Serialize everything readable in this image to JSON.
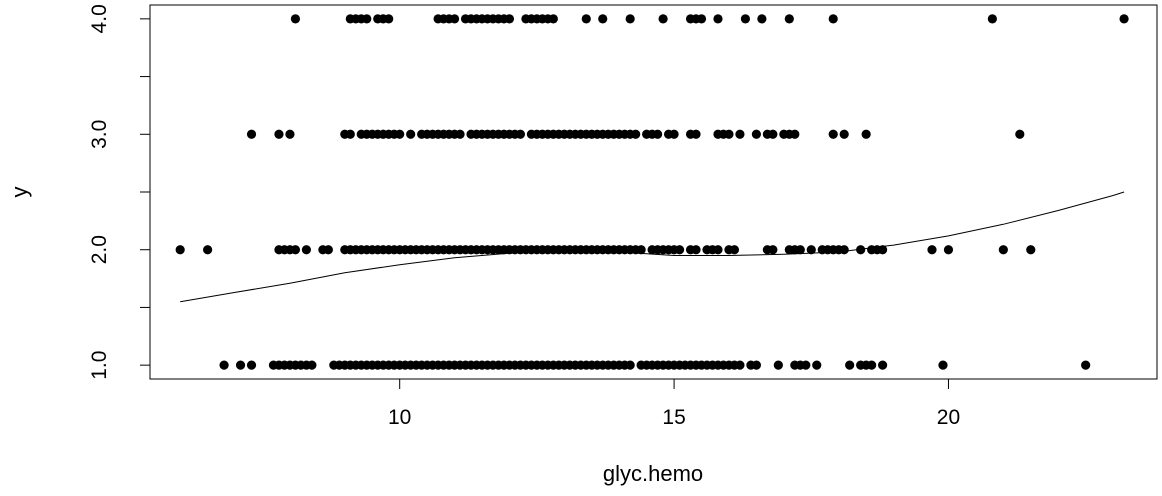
{
  "chart_data": {
    "type": "scatter",
    "title": "",
    "xlabel": "glyc.hemo",
    "ylabel": "y",
    "xlim": [
      5.45,
      23.8
    ],
    "ylim": [
      0.88,
      4.12
    ],
    "x_ticks": [
      10,
      15,
      20
    ],
    "x_tick_labels": [
      "10",
      "15",
      "20"
    ],
    "y_ticks": [
      1.0,
      1.5,
      2.0,
      2.5,
      3.0,
      3.5,
      4.0
    ],
    "y_tick_labels": [
      "1.0",
      "",
      "2.0",
      "",
      "3.0",
      "",
      "4.0"
    ],
    "grid": false,
    "legend": "none",
    "point_color": "#000000",
    "series": [
      {
        "type": "scatter",
        "points": [
          [
            8.1,
            4
          ],
          [
            9.1,
            4
          ],
          [
            9.2,
            4
          ],
          [
            9.3,
            4
          ],
          [
            9.4,
            4
          ],
          [
            9.6,
            4
          ],
          [
            9.7,
            4
          ],
          [
            9.8,
            4
          ],
          [
            10.7,
            4
          ],
          [
            10.8,
            4
          ],
          [
            10.9,
            4
          ],
          [
            11.0,
            4
          ],
          [
            11.2,
            4
          ],
          [
            11.3,
            4
          ],
          [
            11.4,
            4
          ],
          [
            11.5,
            4
          ],
          [
            11.6,
            4
          ],
          [
            11.7,
            4
          ],
          [
            11.8,
            4
          ],
          [
            11.9,
            4
          ],
          [
            12.0,
            4
          ],
          [
            12.3,
            4
          ],
          [
            12.4,
            4
          ],
          [
            12.5,
            4
          ],
          [
            12.6,
            4
          ],
          [
            12.7,
            4
          ],
          [
            12.8,
            4
          ],
          [
            13.4,
            4
          ],
          [
            13.7,
            4
          ],
          [
            14.2,
            4
          ],
          [
            14.8,
            4
          ],
          [
            15.3,
            4
          ],
          [
            15.4,
            4
          ],
          [
            15.5,
            4
          ],
          [
            15.8,
            4
          ],
          [
            16.3,
            4
          ],
          [
            16.6,
            4
          ],
          [
            17.1,
            4
          ],
          [
            17.9,
            4
          ],
          [
            20.8,
            4
          ],
          [
            23.2,
            4
          ],
          [
            7.3,
            3
          ],
          [
            7.8,
            3
          ],
          [
            8.0,
            3
          ],
          [
            9.0,
            3
          ],
          [
            9.1,
            3
          ],
          [
            9.3,
            3
          ],
          [
            9.4,
            3
          ],
          [
            9.5,
            3
          ],
          [
            9.6,
            3
          ],
          [
            9.7,
            3
          ],
          [
            9.8,
            3
          ],
          [
            9.9,
            3
          ],
          [
            10.0,
            3
          ],
          [
            10.2,
            3
          ],
          [
            10.4,
            3
          ],
          [
            10.5,
            3
          ],
          [
            10.6,
            3
          ],
          [
            10.7,
            3
          ],
          [
            10.8,
            3
          ],
          [
            10.9,
            3
          ],
          [
            11.0,
            3
          ],
          [
            11.1,
            3
          ],
          [
            11.3,
            3
          ],
          [
            11.4,
            3
          ],
          [
            11.5,
            3
          ],
          [
            11.6,
            3
          ],
          [
            11.7,
            3
          ],
          [
            11.8,
            3
          ],
          [
            11.9,
            3
          ],
          [
            12.0,
            3
          ],
          [
            12.1,
            3
          ],
          [
            12.2,
            3
          ],
          [
            12.4,
            3
          ],
          [
            12.5,
            3
          ],
          [
            12.6,
            3
          ],
          [
            12.7,
            3
          ],
          [
            12.8,
            3
          ],
          [
            12.9,
            3
          ],
          [
            13.0,
            3
          ],
          [
            13.1,
            3
          ],
          [
            13.2,
            3
          ],
          [
            13.3,
            3
          ],
          [
            13.4,
            3
          ],
          [
            13.5,
            3
          ],
          [
            13.6,
            3
          ],
          [
            13.7,
            3
          ],
          [
            13.8,
            3
          ],
          [
            13.9,
            3
          ],
          [
            14.0,
            3
          ],
          [
            14.1,
            3
          ],
          [
            14.2,
            3
          ],
          [
            14.3,
            3
          ],
          [
            14.5,
            3
          ],
          [
            14.6,
            3
          ],
          [
            14.7,
            3
          ],
          [
            14.9,
            3
          ],
          [
            15.0,
            3
          ],
          [
            15.3,
            3
          ],
          [
            15.4,
            3
          ],
          [
            15.8,
            3
          ],
          [
            15.9,
            3
          ],
          [
            16.0,
            3
          ],
          [
            16.2,
            3
          ],
          [
            16.5,
            3
          ],
          [
            16.7,
            3
          ],
          [
            16.8,
            3
          ],
          [
            17.0,
            3
          ],
          [
            17.1,
            3
          ],
          [
            17.2,
            3
          ],
          [
            17.9,
            3
          ],
          [
            18.1,
            3
          ],
          [
            18.5,
            3
          ],
          [
            21.3,
            3
          ],
          [
            6.0,
            2
          ],
          [
            6.5,
            2
          ],
          [
            7.8,
            2
          ],
          [
            7.9,
            2
          ],
          [
            8.0,
            2
          ],
          [
            8.1,
            2
          ],
          [
            8.3,
            2
          ],
          [
            8.6,
            2
          ],
          [
            8.7,
            2
          ],
          [
            9.0,
            2
          ],
          [
            9.1,
            2
          ],
          [
            9.2,
            2
          ],
          [
            9.3,
            2
          ],
          [
            9.4,
            2
          ],
          [
            9.5,
            2
          ],
          [
            9.6,
            2
          ],
          [
            9.7,
            2
          ],
          [
            9.8,
            2
          ],
          [
            9.9,
            2
          ],
          [
            10.0,
            2
          ],
          [
            10.1,
            2
          ],
          [
            10.2,
            2
          ],
          [
            10.3,
            2
          ],
          [
            10.4,
            2
          ],
          [
            10.5,
            2
          ],
          [
            10.6,
            2
          ],
          [
            10.7,
            2
          ],
          [
            10.8,
            2
          ],
          [
            10.9,
            2
          ],
          [
            11.0,
            2
          ],
          [
            11.1,
            2
          ],
          [
            11.2,
            2
          ],
          [
            11.3,
            2
          ],
          [
            11.4,
            2
          ],
          [
            11.5,
            2
          ],
          [
            11.6,
            2
          ],
          [
            11.7,
            2
          ],
          [
            11.8,
            2
          ],
          [
            11.9,
            2
          ],
          [
            12.0,
            2
          ],
          [
            12.1,
            2
          ],
          [
            12.2,
            2
          ],
          [
            12.3,
            2
          ],
          [
            12.4,
            2
          ],
          [
            12.5,
            2
          ],
          [
            12.6,
            2
          ],
          [
            12.7,
            2
          ],
          [
            12.8,
            2
          ],
          [
            12.9,
            2
          ],
          [
            13.0,
            2
          ],
          [
            13.1,
            2
          ],
          [
            13.2,
            2
          ],
          [
            13.3,
            2
          ],
          [
            13.4,
            2
          ],
          [
            13.5,
            2
          ],
          [
            13.6,
            2
          ],
          [
            13.7,
            2
          ],
          [
            13.8,
            2
          ],
          [
            13.9,
            2
          ],
          [
            14.0,
            2
          ],
          [
            14.1,
            2
          ],
          [
            14.2,
            2
          ],
          [
            14.3,
            2
          ],
          [
            14.4,
            2
          ],
          [
            14.6,
            2
          ],
          [
            14.7,
            2
          ],
          [
            14.8,
            2
          ],
          [
            14.9,
            2
          ],
          [
            15.0,
            2
          ],
          [
            15.1,
            2
          ],
          [
            15.3,
            2
          ],
          [
            15.4,
            2
          ],
          [
            15.6,
            2
          ],
          [
            15.7,
            2
          ],
          [
            15.8,
            2
          ],
          [
            16.0,
            2
          ],
          [
            16.1,
            2
          ],
          [
            16.7,
            2
          ],
          [
            16.8,
            2
          ],
          [
            17.1,
            2
          ],
          [
            17.2,
            2
          ],
          [
            17.3,
            2
          ],
          [
            17.5,
            2
          ],
          [
            17.7,
            2
          ],
          [
            17.8,
            2
          ],
          [
            17.9,
            2
          ],
          [
            18.0,
            2
          ],
          [
            18.1,
            2
          ],
          [
            18.4,
            2
          ],
          [
            18.6,
            2
          ],
          [
            18.7,
            2
          ],
          [
            18.8,
            2
          ],
          [
            19.7,
            2
          ],
          [
            20.0,
            2
          ],
          [
            21.0,
            2
          ],
          [
            21.5,
            2
          ],
          [
            6.8,
            1
          ],
          [
            7.1,
            1
          ],
          [
            7.3,
            1
          ],
          [
            7.7,
            1
          ],
          [
            7.8,
            1
          ],
          [
            7.9,
            1
          ],
          [
            8.0,
            1
          ],
          [
            8.1,
            1
          ],
          [
            8.2,
            1
          ],
          [
            8.3,
            1
          ],
          [
            8.4,
            1
          ],
          [
            8.8,
            1
          ],
          [
            8.9,
            1
          ],
          [
            9.0,
            1
          ],
          [
            9.1,
            1
          ],
          [
            9.2,
            1
          ],
          [
            9.3,
            1
          ],
          [
            9.4,
            1
          ],
          [
            9.5,
            1
          ],
          [
            9.6,
            1
          ],
          [
            9.7,
            1
          ],
          [
            9.8,
            1
          ],
          [
            9.9,
            1
          ],
          [
            10.0,
            1
          ],
          [
            10.1,
            1
          ],
          [
            10.2,
            1
          ],
          [
            10.3,
            1
          ],
          [
            10.4,
            1
          ],
          [
            10.5,
            1
          ],
          [
            10.6,
            1
          ],
          [
            10.7,
            1
          ],
          [
            10.8,
            1
          ],
          [
            10.9,
            1
          ],
          [
            11.0,
            1
          ],
          [
            11.1,
            1
          ],
          [
            11.2,
            1
          ],
          [
            11.3,
            1
          ],
          [
            11.4,
            1
          ],
          [
            11.5,
            1
          ],
          [
            11.6,
            1
          ],
          [
            11.7,
            1
          ],
          [
            11.8,
            1
          ],
          [
            11.9,
            1
          ],
          [
            12.0,
            1
          ],
          [
            12.1,
            1
          ],
          [
            12.2,
            1
          ],
          [
            12.3,
            1
          ],
          [
            12.4,
            1
          ],
          [
            12.5,
            1
          ],
          [
            12.6,
            1
          ],
          [
            12.7,
            1
          ],
          [
            12.8,
            1
          ],
          [
            12.9,
            1
          ],
          [
            13.0,
            1
          ],
          [
            13.1,
            1
          ],
          [
            13.2,
            1
          ],
          [
            13.3,
            1
          ],
          [
            13.4,
            1
          ],
          [
            13.5,
            1
          ],
          [
            13.6,
            1
          ],
          [
            13.7,
            1
          ],
          [
            13.8,
            1
          ],
          [
            13.9,
            1
          ],
          [
            14.0,
            1
          ],
          [
            14.1,
            1
          ],
          [
            14.2,
            1
          ],
          [
            14.4,
            1
          ],
          [
            14.5,
            1
          ],
          [
            14.6,
            1
          ],
          [
            14.7,
            1
          ],
          [
            14.8,
            1
          ],
          [
            14.9,
            1
          ],
          [
            15.0,
            1
          ],
          [
            15.1,
            1
          ],
          [
            15.2,
            1
          ],
          [
            15.3,
            1
          ],
          [
            15.4,
            1
          ],
          [
            15.5,
            1
          ],
          [
            15.6,
            1
          ],
          [
            15.7,
            1
          ],
          [
            15.8,
            1
          ],
          [
            15.9,
            1
          ],
          [
            16.0,
            1
          ],
          [
            16.1,
            1
          ],
          [
            16.2,
            1
          ],
          [
            16.4,
            1
          ],
          [
            16.5,
            1
          ],
          [
            16.9,
            1
          ],
          [
            17.2,
            1
          ],
          [
            17.3,
            1
          ],
          [
            17.4,
            1
          ],
          [
            17.6,
            1
          ],
          [
            18.2,
            1
          ],
          [
            18.4,
            1
          ],
          [
            18.5,
            1
          ],
          [
            18.6,
            1
          ],
          [
            18.8,
            1
          ],
          [
            19.9,
            1
          ],
          [
            22.5,
            1
          ]
        ]
      },
      {
        "type": "line",
        "points": [
          [
            6.0,
            1.55
          ],
          [
            7.0,
            1.63
          ],
          [
            8.0,
            1.71
          ],
          [
            9.0,
            1.8
          ],
          [
            10.0,
            1.87
          ],
          [
            11.0,
            1.93
          ],
          [
            12.0,
            1.97
          ],
          [
            13.0,
            1.99
          ],
          [
            14.0,
            1.98
          ],
          [
            15.0,
            1.95
          ],
          [
            16.0,
            1.95
          ],
          [
            17.0,
            1.96
          ],
          [
            18.0,
            1.98
          ],
          [
            19.0,
            2.04
          ],
          [
            20.0,
            2.12
          ],
          [
            21.0,
            2.22
          ],
          [
            22.0,
            2.34
          ],
          [
            23.0,
            2.47
          ],
          [
            23.2,
            2.5
          ]
        ]
      }
    ]
  }
}
